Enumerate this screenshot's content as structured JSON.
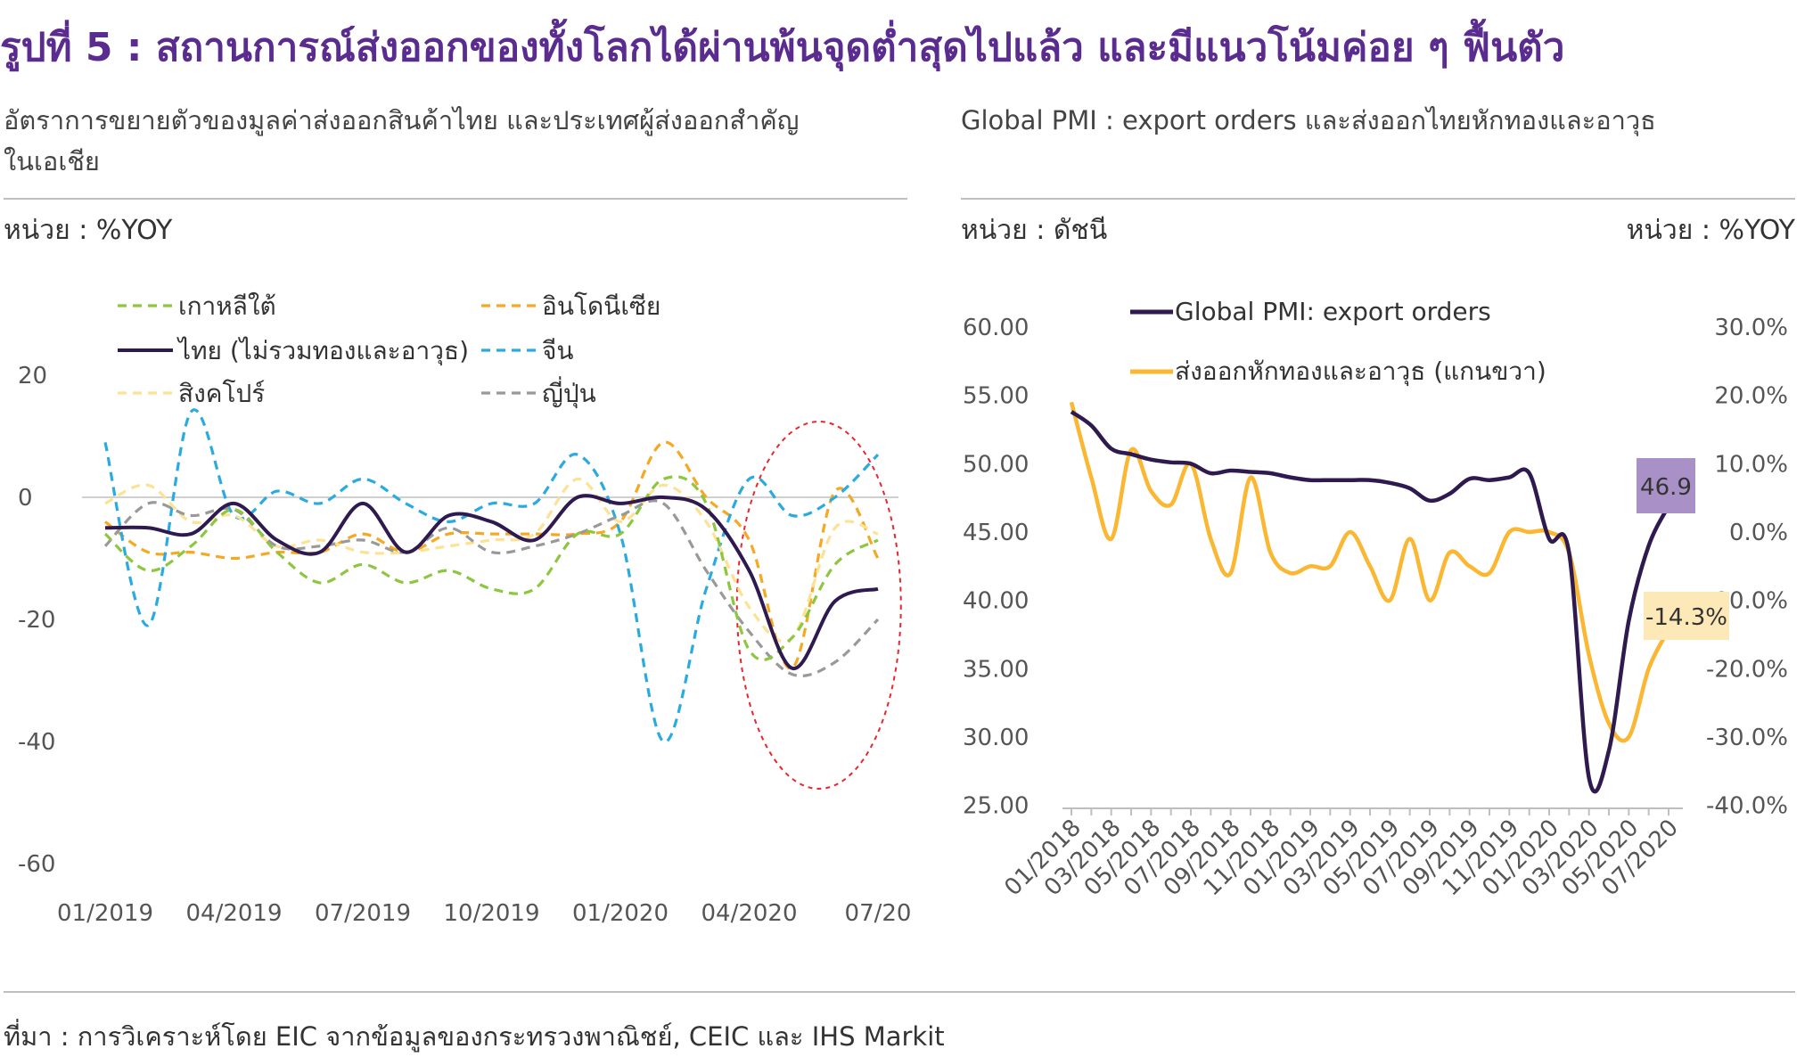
{
  "title": "รูปที่ 5 : สถานการณ์ส่งออกของทั้งโลกได้ผ่านพ้นจุดต่ำสุดไปแล้ว และมีแนวโน้มค่อย ๆ ฟื้นตัว",
  "left_panel": {
    "subtitle_line1": "อัตราการขยายตัวของมูลค่าส่งออกสินค้าไทย  และประเทศผู้ส่งออกสำคัญ",
    "subtitle_line2": "ในเอเชีย",
    "unit": "หน่วย : %YOY"
  },
  "right_panel": {
    "subtitle": "Global PMI : export orders และส่งออกไทยหักทองและอาวุธ",
    "unit_left": "หน่วย : ดัชนี",
    "unit_right": "หน่วย : %YOY"
  },
  "source": "ที่มา : การวิเคราะห์โดย EIC จากข้อมูลของกระทรวงพาณิชย์, CEIC และ IHS Markit",
  "chart_data": [
    {
      "type": "line",
      "x": [
        "01/2019",
        "02/2019",
        "03/2019",
        "04/2019",
        "05/2019",
        "06/2019",
        "07/2019",
        "08/2019",
        "09/2019",
        "10/2019",
        "11/2019",
        "12/2019",
        "01/2020",
        "02/2020",
        "03/2020",
        "04/2020",
        "05/2020",
        "06/2020",
        "07/2020"
      ],
      "x_tick_labels": [
        "01/2019",
        "04/2019",
        "07/2019",
        "10/2019",
        "01/2020",
        "04/2020",
        "07/20"
      ],
      "y_ticks": [
        20,
        0,
        -20,
        -40,
        -60
      ],
      "ylim": [
        -60,
        20
      ],
      "grid": false,
      "legend_position": "top",
      "annotation": "red dashed ellipse around 04/2020 to 07/2020",
      "series": [
        {
          "name": "เกาหลีใต้",
          "color": "#8dc63f",
          "dash": "dashed",
          "values": [
            -6,
            -12,
            -8,
            -2,
            -9,
            -14,
            -11,
            -14,
            -12,
            -15,
            -15,
            -6,
            -6,
            3,
            -1,
            -25,
            -23,
            -11,
            -7
          ]
        },
        {
          "name": "อินโดนีเซีย",
          "color": "#f7a823",
          "dash": "dashed",
          "values": [
            -4,
            -9,
            -9,
            -10,
            -9,
            -9,
            -6,
            -9,
            -6,
            -6,
            -6,
            -6,
            -4,
            9,
            0,
            -7,
            -28,
            1,
            -10
          ]
        },
        {
          "name": "ไทย (ไม่รวมทองและอาวุธ)",
          "color": "#2e1a4f",
          "dash": "solid",
          "width": 4,
          "values": [
            -5,
            -5,
            -6,
            -1,
            -7,
            -9,
            -1,
            -9,
            -3,
            -4,
            -7,
            0,
            -1,
            0,
            -2,
            -12,
            -28,
            -17,
            -15
          ]
        },
        {
          "name": "จีน",
          "color": "#29abe2",
          "dash": "dashed",
          "values": [
            9,
            -21,
            14,
            -3,
            1,
            -1,
            3,
            -1,
            -4,
            -1,
            -1,
            7,
            -6,
            -40,
            -15,
            3,
            -3,
            0,
            7
          ]
        },
        {
          "name": "สิงคโปร์",
          "color": "#fde293",
          "dash": "dashed",
          "values": [
            -1,
            2,
            -4,
            -3,
            -8,
            -7,
            -9,
            -9,
            -8,
            -7,
            -6,
            3,
            -4,
            2,
            -4,
            -18,
            -23,
            -5,
            -6
          ]
        },
        {
          "name": "ญี่ปุ่น",
          "color": "#999999",
          "dash": "dashed",
          "values": [
            -8,
            -1,
            -3,
            -2,
            -8,
            -8,
            -7,
            -9,
            -5,
            -9,
            -8,
            -6,
            -3,
            -1,
            -12,
            -22,
            -29,
            -27,
            -20
          ]
        }
      ]
    },
    {
      "type": "line",
      "x": [
        "01/2018",
        "02/2018",
        "03/2018",
        "04/2018",
        "05/2018",
        "06/2018",
        "07/2018",
        "08/2018",
        "09/2018",
        "10/2018",
        "11/2018",
        "12/2018",
        "01/2019",
        "02/2019",
        "03/2019",
        "04/2019",
        "05/2019",
        "06/2019",
        "07/2019",
        "08/2019",
        "09/2019",
        "10/2019",
        "11/2019",
        "12/2019",
        "01/2020",
        "02/2020",
        "03/2020",
        "04/2020",
        "05/2020",
        "06/2020",
        "07/2020"
      ],
      "x_tick_labels": [
        "01/2018",
        "03/2018",
        "05/2018",
        "07/2018",
        "09/2018",
        "11/2018",
        "01/2019",
        "03/2019",
        "05/2019",
        "07/2019",
        "09/2019",
        "11/2019",
        "01/2020",
        "03/2020",
        "05/2020",
        "07/2020"
      ],
      "y_left_ticks": [
        "60.00",
        "55.00",
        "50.00",
        "45.00",
        "40.00",
        "35.00",
        "30.00",
        "25.00"
      ],
      "y_right_ticks": [
        "30.0%",
        "20.0%",
        "10.0%",
        "0.0%",
        "-10.0%",
        "-20.0%",
        "-30.0%",
        "-40.0%"
      ],
      "ylim_left": [
        25,
        60
      ],
      "ylim_right": [
        -40,
        30
      ],
      "grid": false,
      "legend_position": "top",
      "series": [
        {
          "name": "Global PMI: export orders",
          "color": "#2e1a4f",
          "axis": "left",
          "values": [
            53.8,
            52.8,
            51.1,
            50.7,
            50.3,
            50.1,
            50.0,
            49.3,
            49.5,
            49.4,
            49.3,
            49.0,
            48.8,
            48.8,
            48.8,
            48.8,
            48.6,
            48.2,
            47.3,
            47.8,
            48.9,
            48.8,
            49.0,
            49.3,
            44.5,
            43.5,
            27.0,
            29.0,
            38.5,
            44.0,
            46.9
          ]
        },
        {
          "name": "ส่งออกหักทองและอาวุธ (แกนขวา)",
          "color": "#fbb632",
          "axis": "right",
          "values": [
            19,
            8,
            -1,
            12,
            6,
            4,
            10,
            -1,
            -6,
            8,
            -3,
            -6,
            -5,
            -5,
            0,
            -5,
            -10,
            -1,
            -10,
            -3,
            -5,
            -6,
            0,
            0,
            0,
            -3,
            -18,
            -28,
            -30,
            -20,
            -14.3
          ]
        }
      ],
      "labels": [
        {
          "text": "46.9",
          "color": "#a991c8",
          "series": "Global PMI: export orders"
        },
        {
          "text": "-14.3%",
          "color": "#fde8b8",
          "series": "ส่งออกหักทองและอาวุธ (แกนขวา)"
        }
      ]
    }
  ]
}
